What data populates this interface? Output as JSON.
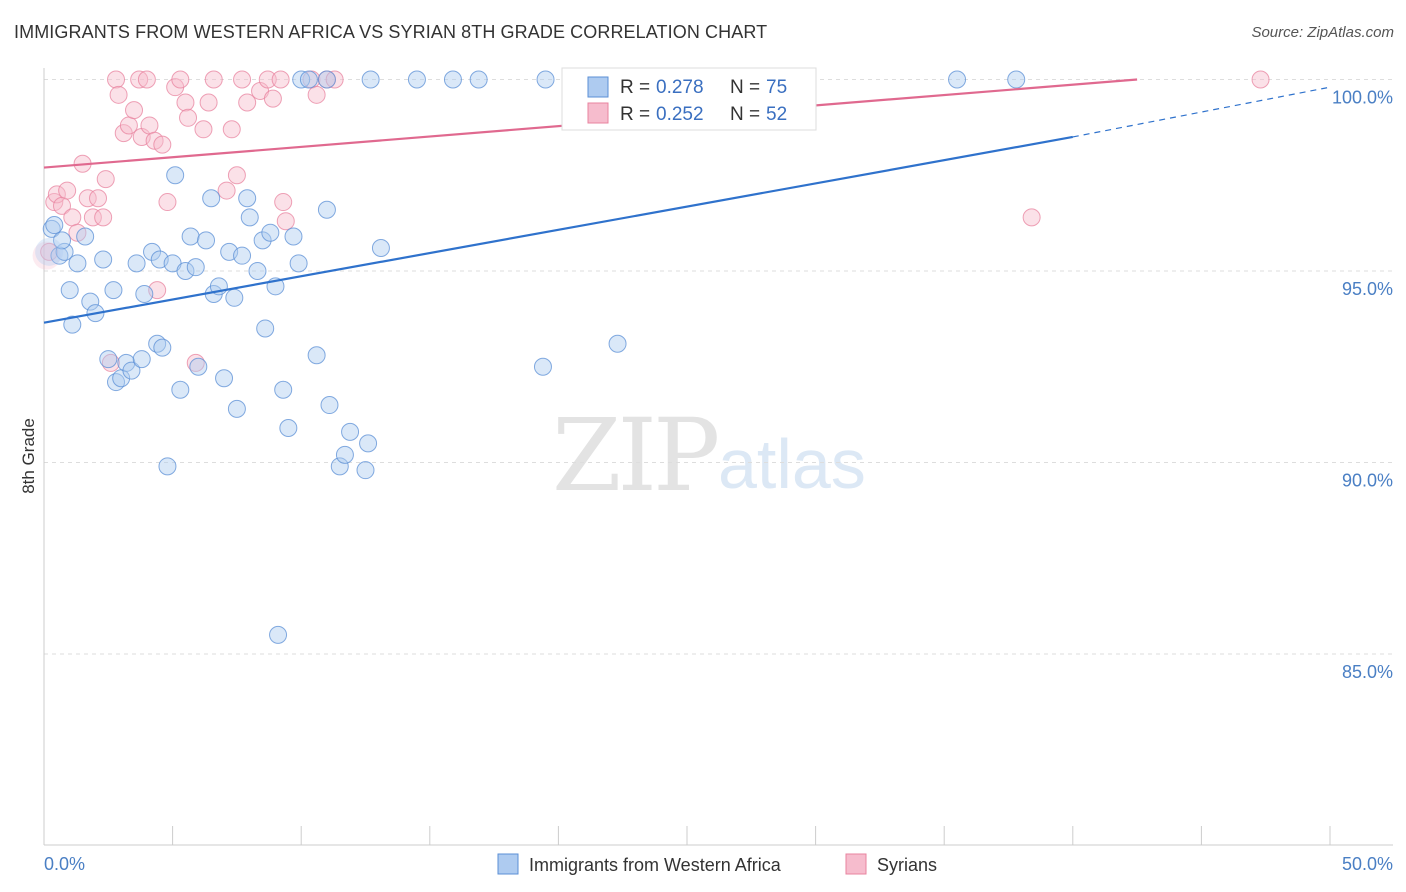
{
  "header": {
    "title": "IMMIGRANTS FROM WESTERN AFRICA VS SYRIAN 8TH GRADE CORRELATION CHART",
    "source": "Source: ZipAtlas.com"
  },
  "watermark": {
    "zip": "ZIP",
    "atlas": "atlas"
  },
  "colors": {
    "blue": "#5b8fd6",
    "blue_fill": "#aecbf0",
    "blue_line": "#2f72cc",
    "pink": "#e8839f",
    "pink_fill": "#f6bccd",
    "pink_line": "#e0698f",
    "grid": "#dddddd",
    "axis_text": "#4a7fc4"
  },
  "legend": {
    "series1": {
      "r_label": "R = ",
      "r_value": "0.278",
      "n_label": "N = ",
      "n_value": "75"
    },
    "series2": {
      "r_label": "R = ",
      "r_value": "0.252",
      "n_label": "N = ",
      "n_value": "52"
    }
  },
  "chart_data": {
    "type": "scatter",
    "title": "IMMIGRANTS FROM WESTERN AFRICA VS SYRIAN 8TH GRADE CORRELATION CHART",
    "xlabel": "",
    "ylabel": "8th Grade",
    "xlim": [
      0,
      50
    ],
    "ylim": [
      80.5,
      100.6
    ],
    "x_tick_labels": [
      "0.0%",
      "50.0%"
    ],
    "y_ticks": [
      85,
      90,
      95,
      100
    ],
    "y_tick_labels": [
      "85.0%",
      "90.0%",
      "95.0%",
      "100.0%"
    ],
    "grid": true,
    "series": [
      {
        "name": "Immigrants from Western Africa",
        "color": "blue",
        "r": 0.278,
        "n": 75,
        "trend": {
          "x_start": 0,
          "y_start": 93.65,
          "x_end": 40,
          "y_end": 98.5,
          "dashed_to_x": 50,
          "dashed_to_y": 99.8
        },
        "points": [
          [
            0.3,
            96.1
          ],
          [
            0.6,
            95.4
          ],
          [
            0.8,
            95.5
          ],
          [
            1.0,
            94.5
          ],
          [
            1.1,
            93.6
          ],
          [
            1.3,
            95.2
          ],
          [
            1.6,
            95.9
          ],
          [
            1.8,
            94.2
          ],
          [
            2.0,
            93.9
          ],
          [
            2.3,
            95.3
          ],
          [
            2.5,
            92.7
          ],
          [
            2.7,
            94.5
          ],
          [
            2.8,
            92.1
          ],
          [
            3.0,
            92.2
          ],
          [
            3.2,
            92.6
          ],
          [
            3.4,
            92.4
          ],
          [
            3.6,
            95.2
          ],
          [
            3.8,
            92.7
          ],
          [
            3.9,
            94.4
          ],
          [
            4.2,
            95.5
          ],
          [
            4.4,
            93.1
          ],
          [
            4.5,
            95.3
          ],
          [
            4.6,
            93.0
          ],
          [
            4.8,
            89.9
          ],
          [
            5.0,
            95.2
          ],
          [
            5.1,
            97.5
          ],
          [
            5.3,
            91.9
          ],
          [
            5.5,
            95.0
          ],
          [
            5.7,
            95.9
          ],
          [
            5.9,
            95.1
          ],
          [
            6.0,
            92.5
          ],
          [
            6.3,
            95.8
          ],
          [
            6.5,
            96.9
          ],
          [
            6.6,
            94.4
          ],
          [
            6.8,
            94.6
          ],
          [
            7.0,
            92.2
          ],
          [
            7.2,
            95.5
          ],
          [
            7.4,
            94.3
          ],
          [
            7.5,
            91.4
          ],
          [
            7.7,
            95.4
          ],
          [
            7.9,
            96.9
          ],
          [
            8.0,
            96.4
          ],
          [
            8.3,
            95.0
          ],
          [
            8.5,
            95.8
          ],
          [
            8.6,
            93.5
          ],
          [
            8.8,
            96.0
          ],
          [
            9.0,
            94.6
          ],
          [
            9.1,
            85.5
          ],
          [
            9.3,
            91.9
          ],
          [
            9.5,
            90.9
          ],
          [
            9.7,
            95.9
          ],
          [
            9.9,
            95.2
          ],
          [
            10.0,
            100.0
          ],
          [
            10.3,
            100.0
          ],
          [
            10.6,
            92.8
          ],
          [
            11.0,
            96.6
          ],
          [
            11.1,
            91.5
          ],
          [
            11.5,
            89.9
          ],
          [
            11.7,
            90.2
          ],
          [
            11.9,
            90.8
          ],
          [
            12.5,
            89.8
          ],
          [
            12.6,
            90.5
          ],
          [
            13.1,
            95.6
          ],
          [
            14.5,
            100.0
          ],
          [
            15.9,
            100.0
          ],
          [
            16.9,
            100.0
          ],
          [
            19.4,
            92.5
          ],
          [
            19.5,
            100.0
          ],
          [
            22.3,
            93.1
          ],
          [
            11.0,
            100.0
          ],
          [
            12.7,
            100.0
          ],
          [
            35.5,
            100.0
          ],
          [
            37.8,
            100.0
          ],
          [
            0.4,
            96.2
          ],
          [
            0.7,
            95.8
          ]
        ]
      },
      {
        "name": "Syrians",
        "color": "pink",
        "r": 0.252,
        "n": 52,
        "trend": {
          "x_start": 0,
          "y_start": 97.7,
          "x_end": 42.5,
          "y_end": 100.0
        },
        "points": [
          [
            0.2,
            95.5
          ],
          [
            0.4,
            96.8
          ],
          [
            0.5,
            97.0
          ],
          [
            0.7,
            96.7
          ],
          [
            0.9,
            97.1
          ],
          [
            1.1,
            96.4
          ],
          [
            1.3,
            96.0
          ],
          [
            1.5,
            97.8
          ],
          [
            1.7,
            96.9
          ],
          [
            1.9,
            96.4
          ],
          [
            2.1,
            96.9
          ],
          [
            2.3,
            96.4
          ],
          [
            2.4,
            97.4
          ],
          [
            2.6,
            92.6
          ],
          [
            2.8,
            100.0
          ],
          [
            2.9,
            99.6
          ],
          [
            3.1,
            98.6
          ],
          [
            3.3,
            98.8
          ],
          [
            3.5,
            99.2
          ],
          [
            3.7,
            100.0
          ],
          [
            3.8,
            98.5
          ],
          [
            4.0,
            100.0
          ],
          [
            4.1,
            98.8
          ],
          [
            4.3,
            98.4
          ],
          [
            4.4,
            94.5
          ],
          [
            4.6,
            98.3
          ],
          [
            4.8,
            96.8
          ],
          [
            5.1,
            99.8
          ],
          [
            5.3,
            100.0
          ],
          [
            5.5,
            99.4
          ],
          [
            5.6,
            99.0
          ],
          [
            5.9,
            92.6
          ],
          [
            6.2,
            98.7
          ],
          [
            6.4,
            99.4
          ],
          [
            6.6,
            100.0
          ],
          [
            7.1,
            97.1
          ],
          [
            7.3,
            98.7
          ],
          [
            7.5,
            97.5
          ],
          [
            7.7,
            100.0
          ],
          [
            7.9,
            99.4
          ],
          [
            8.4,
            99.7
          ],
          [
            8.7,
            100.0
          ],
          [
            8.9,
            99.5
          ],
          [
            9.2,
            100.0
          ],
          [
            9.3,
            96.8
          ],
          [
            9.4,
            96.3
          ],
          [
            10.4,
            100.0
          ],
          [
            10.6,
            99.6
          ],
          [
            11.0,
            100.0
          ],
          [
            11.3,
            100.0
          ],
          [
            38.4,
            96.4
          ],
          [
            47.3,
            100.0
          ]
        ]
      }
    ]
  }
}
